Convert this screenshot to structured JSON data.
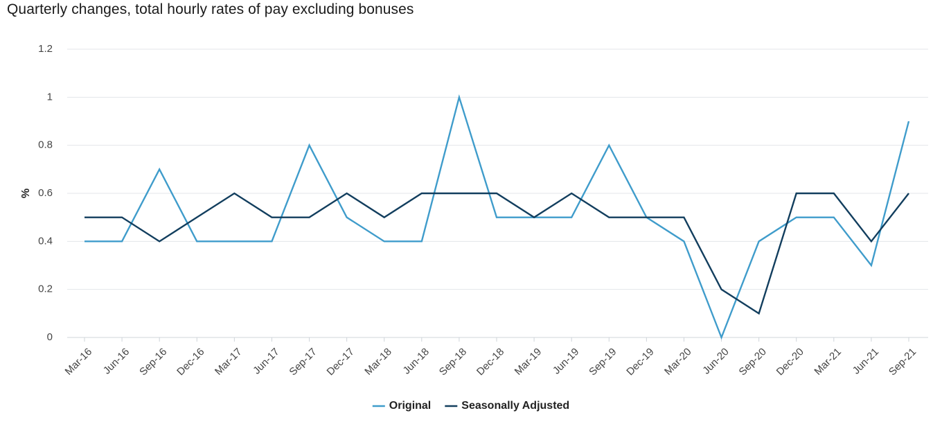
{
  "chart_data": {
    "type": "line",
    "title": "Quarterly changes, total hourly rates of pay excluding bonuses",
    "xlabel": "",
    "ylabel": "%",
    "ylim": [
      0,
      1.2
    ],
    "yticks": [
      "0",
      "0.2",
      "0.4",
      "0.6",
      "0.8",
      "1",
      "1.2"
    ],
    "grid": true,
    "legend_position": "bottom",
    "categories": [
      "Mar-16",
      "Jun-16",
      "Sep-16",
      "Dec-16",
      "Mar-17",
      "Jun-17",
      "Sep-17",
      "Dec-17",
      "Mar-18",
      "Jun-18",
      "Sep-18",
      "Dec-18",
      "Mar-19",
      "Jun-19",
      "Sep-19",
      "Dec-19",
      "Mar-20",
      "Jun-20",
      "Sep-20",
      "Dec-20",
      "Mar-21",
      "Jun-21",
      "Sep-21"
    ],
    "series": [
      {
        "name": "Original",
        "color": "#3f9ccb",
        "values": [
          0.4,
          0.4,
          0.7,
          0.4,
          0.4,
          0.4,
          0.8,
          0.5,
          0.4,
          0.4,
          1.0,
          0.5,
          0.5,
          0.5,
          0.8,
          0.5,
          0.4,
          0.0,
          0.4,
          0.5,
          0.5,
          0.3,
          0.9
        ]
      },
      {
        "name": "Seasonally Adjusted",
        "color": "#123e5e",
        "values": [
          0.5,
          0.5,
          0.4,
          0.5,
          0.6,
          0.5,
          0.5,
          0.6,
          0.5,
          0.6,
          0.6,
          0.6,
          0.5,
          0.6,
          0.5,
          0.5,
          0.5,
          0.2,
          0.1,
          0.6,
          0.6,
          0.4,
          0.6
        ]
      }
    ]
  }
}
